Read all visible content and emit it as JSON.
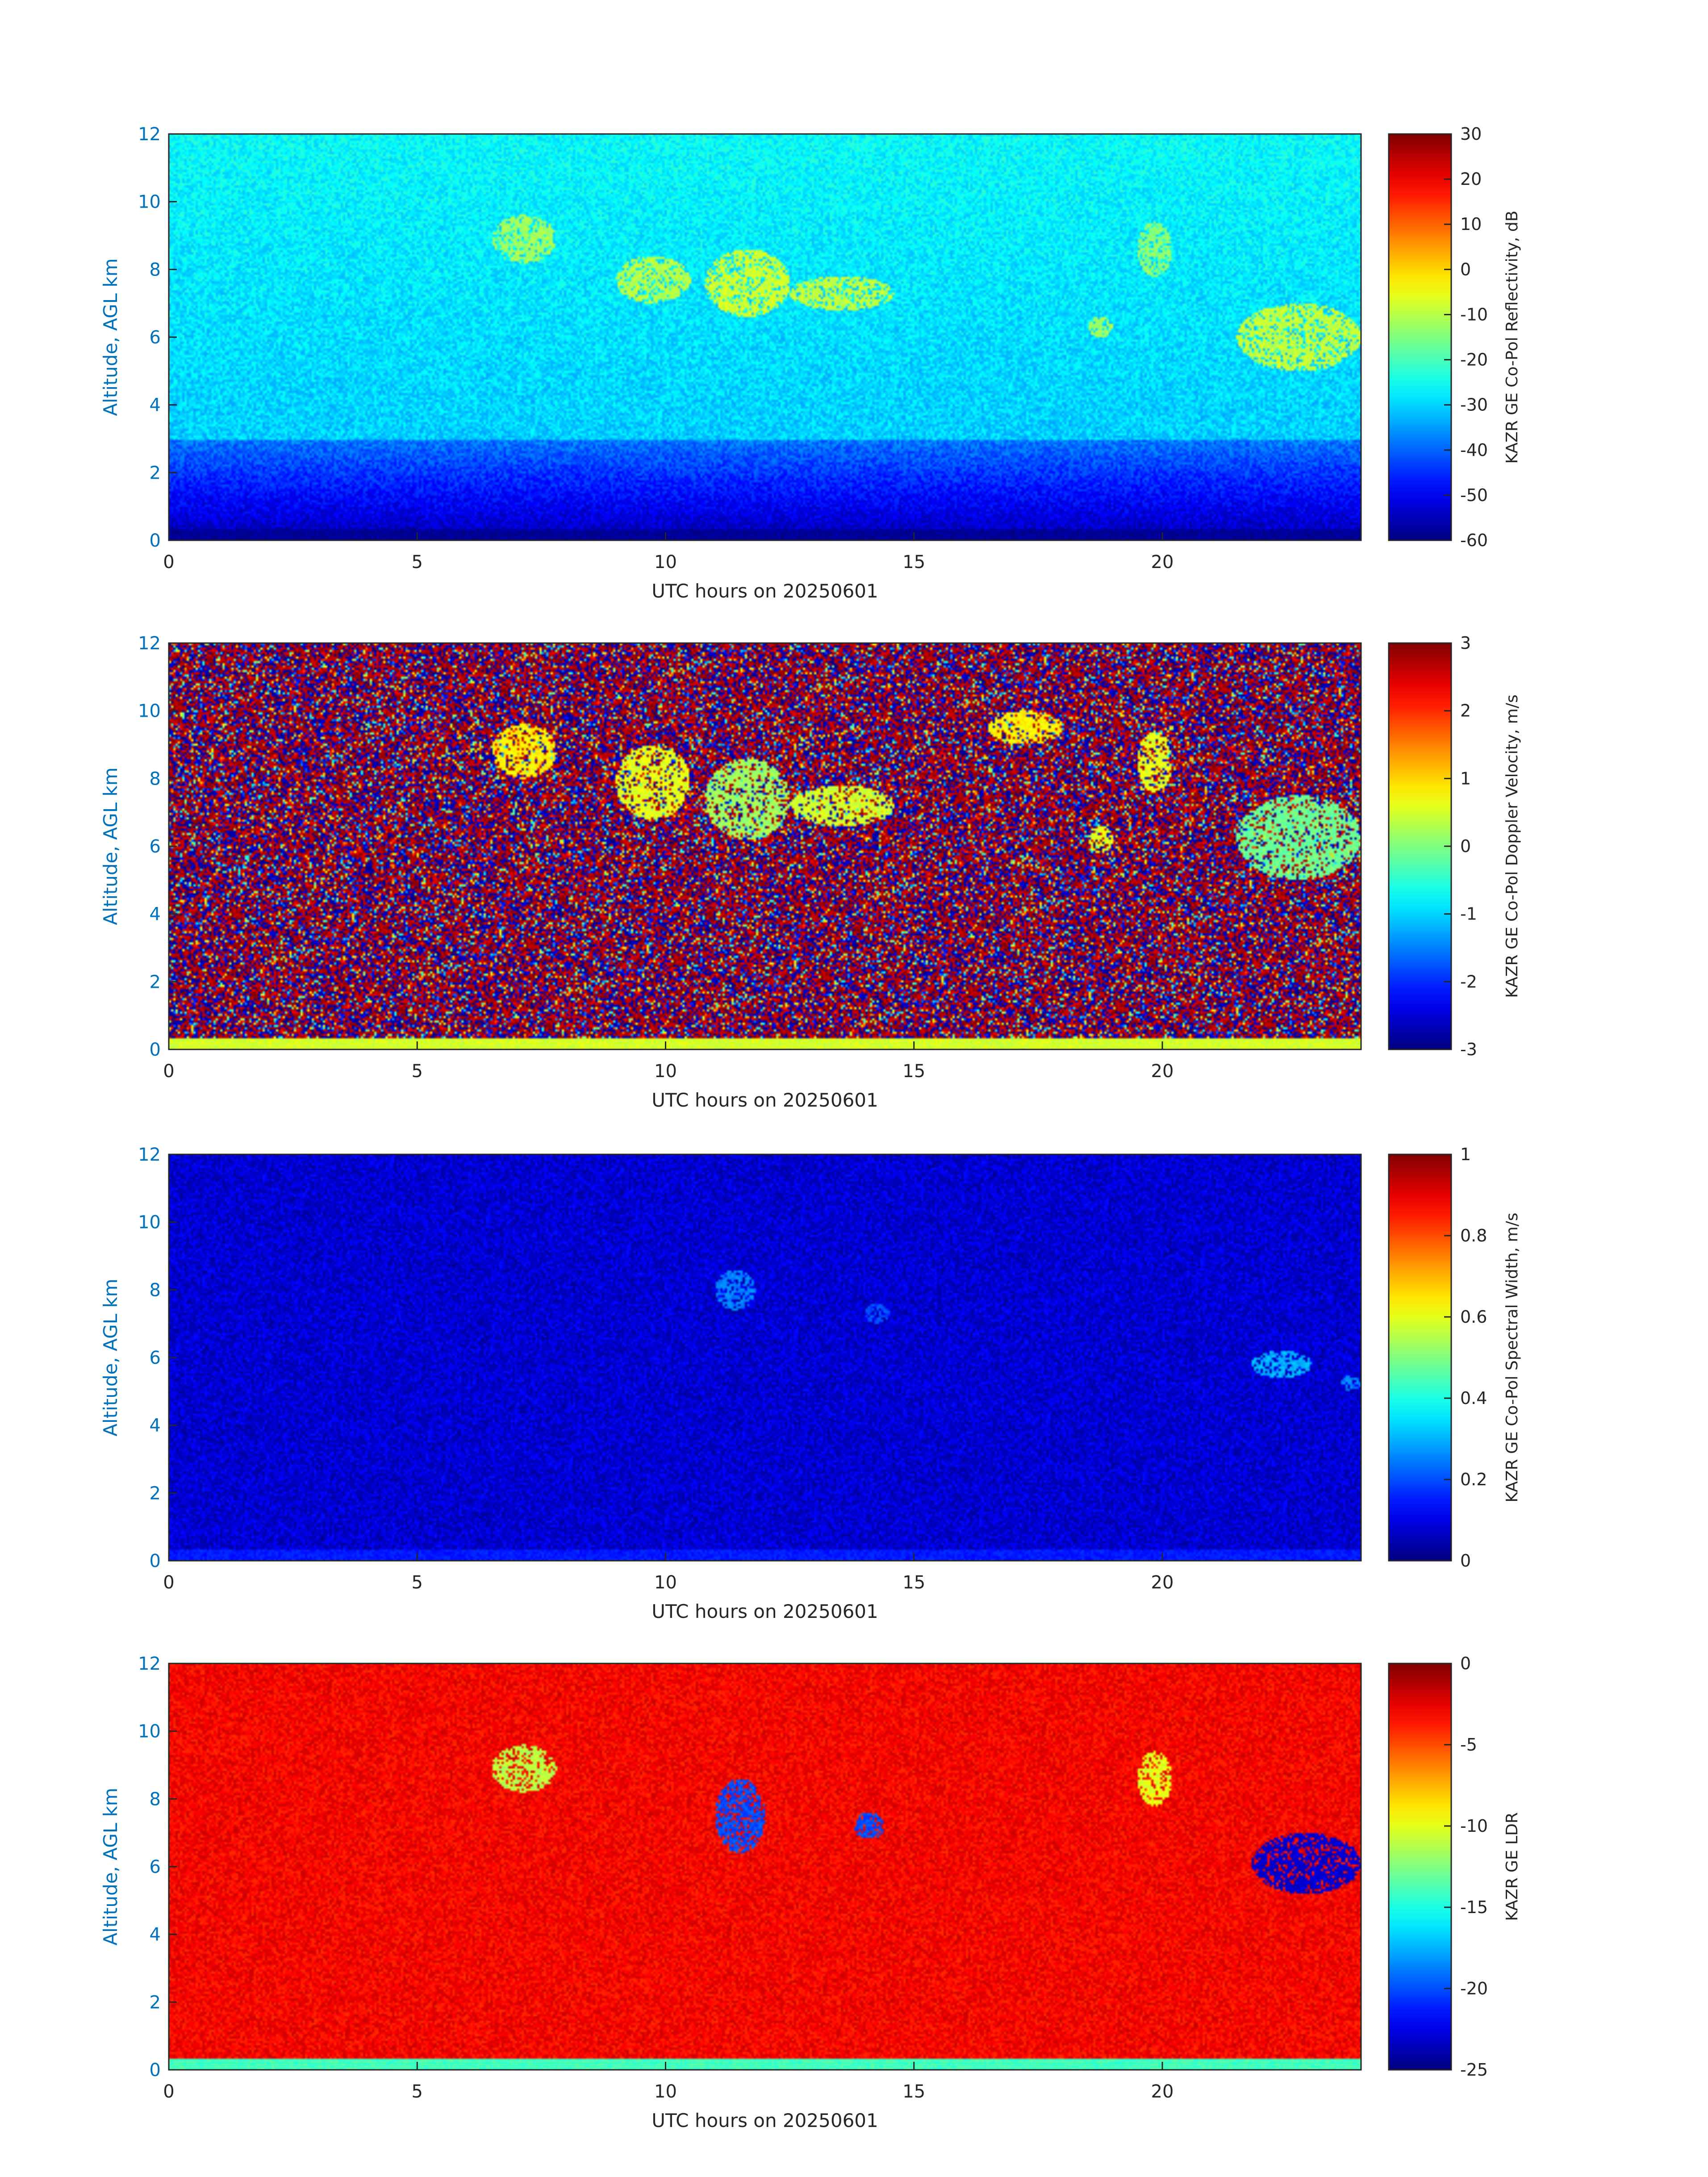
{
  "chart_data": [
    {
      "type": "heatmap",
      "title": "",
      "xlabel": "UTC hours on 20250601",
      "ylabel": "Altitude, AGL km",
      "xlim": [
        0,
        24
      ],
      "ylim": [
        0,
        12
      ],
      "xticks": [
        0,
        5,
        10,
        15,
        20
      ],
      "yticks": [
        0,
        2,
        4,
        6,
        8,
        10,
        12
      ],
      "colormap": "jet",
      "colorbar": {
        "label": "KAZR GE Co-Pol Reflectivity, dB",
        "range": [
          -60,
          30
        ],
        "ticks": [
          30,
          20,
          10,
          0,
          -10,
          -20,
          -30,
          -40,
          -50,
          -60
        ]
      },
      "background_value": -28,
      "surface_value": -58,
      "features": [
        {
          "t0": 6.5,
          "t1": 7.8,
          "z0": 8.2,
          "z1": 9.6,
          "value": -12
        },
        {
          "t0": 9.0,
          "t1": 10.5,
          "z0": 7.0,
          "z1": 8.4,
          "value": -10
        },
        {
          "t0": 10.8,
          "t1": 12.5,
          "z0": 6.6,
          "z1": 8.6,
          "value": -8
        },
        {
          "t0": 12.5,
          "t1": 14.6,
          "z0": 6.8,
          "z1": 7.8,
          "value": -9
        },
        {
          "t0": 18.5,
          "t1": 19.0,
          "z0": 6.0,
          "z1": 6.6,
          "value": -12
        },
        {
          "t0": 19.5,
          "t1": 20.2,
          "z0": 7.8,
          "z1": 9.4,
          "value": -14
        },
        {
          "t0": 21.5,
          "t1": 24.0,
          "z0": 5.0,
          "z1": 7.0,
          "value": -9
        }
      ]
    },
    {
      "type": "heatmap",
      "title": "",
      "xlabel": "UTC hours on 20250601",
      "ylabel": "Altitude, AGL km",
      "xlim": [
        0,
        24
      ],
      "ylim": [
        0,
        12
      ],
      "xticks": [
        0,
        5,
        10,
        15,
        20
      ],
      "yticks": [
        0,
        2,
        4,
        6,
        8,
        10,
        12
      ],
      "colormap": "jet",
      "colorbar": {
        "label": "KAZR GE Co-Pol Doppler Velocity, m/s",
        "range": [
          -3,
          3
        ],
        "ticks": [
          3,
          2,
          1,
          0,
          -1,
          -2,
          -3
        ]
      },
      "background_value": "noise",
      "surface_value": 0.5,
      "features": [
        {
          "t0": 6.5,
          "t1": 7.8,
          "z0": 8.0,
          "z1": 9.6,
          "value": 0.8
        },
        {
          "t0": 9.0,
          "t1": 10.5,
          "z0": 6.8,
          "z1": 9.0,
          "value": 0.6
        },
        {
          "t0": 10.8,
          "t1": 12.5,
          "z0": 6.2,
          "z1": 8.6,
          "value": 0.2
        },
        {
          "t0": 12.5,
          "t1": 14.6,
          "z0": 6.6,
          "z1": 7.8,
          "value": 0.5
        },
        {
          "t0": 16.5,
          "t1": 18.0,
          "z0": 9.0,
          "z1": 10.0,
          "value": 0.8
        },
        {
          "t0": 18.5,
          "t1": 19.0,
          "z0": 5.8,
          "z1": 6.6,
          "value": 0.6
        },
        {
          "t0": 19.5,
          "t1": 20.2,
          "z0": 7.6,
          "z1": 9.4,
          "value": 0.6
        },
        {
          "t0": 21.5,
          "t1": 24.0,
          "z0": 5.0,
          "z1": 7.5,
          "value": -0.1
        }
      ]
    },
    {
      "type": "heatmap",
      "title": "",
      "xlabel": "UTC hours on 20250601",
      "ylabel": "Altitude, AGL km",
      "xlim": [
        0,
        24
      ],
      "ylim": [
        0,
        12
      ],
      "xticks": [
        0,
        5,
        10,
        15,
        20
      ],
      "yticks": [
        0,
        2,
        4,
        6,
        8,
        10,
        12
      ],
      "colormap": "jet",
      "colorbar": {
        "label": "KAZR GE Co-Pol Spectral Width, m/s",
        "range": [
          0,
          1
        ],
        "ticks": [
          1,
          0.8,
          0.6,
          0.4,
          0.2,
          0
        ]
      },
      "background_value": 0.08,
      "surface_value": 0.15,
      "features": [
        {
          "t0": 11.0,
          "t1": 11.8,
          "z0": 7.4,
          "z1": 8.6,
          "value": 0.25
        },
        {
          "t0": 14.0,
          "t1": 14.5,
          "z0": 7.0,
          "z1": 7.6,
          "value": 0.2
        },
        {
          "t0": 21.8,
          "t1": 23.0,
          "z0": 5.4,
          "z1": 6.2,
          "value": 0.3
        },
        {
          "t0": 23.6,
          "t1": 24.0,
          "z0": 5.0,
          "z1": 5.5,
          "value": 0.25
        }
      ]
    },
    {
      "type": "heatmap",
      "title": "",
      "xlabel": "UTC hours on 20250601",
      "ylabel": "Altitude, AGL km",
      "xlim": [
        0,
        24
      ],
      "ylim": [
        0,
        12
      ],
      "xticks": [
        0,
        5,
        10,
        15,
        20
      ],
      "yticks": [
        0,
        2,
        4,
        6,
        8,
        10,
        12
      ],
      "colormap": "jet",
      "colorbar": {
        "label": "KAZR GE LDR",
        "range": [
          -25,
          0
        ],
        "ticks": [
          0,
          -5,
          -10,
          -15,
          -20,
          -25
        ]
      },
      "background_value": -3,
      "surface_value": -14,
      "features": [
        {
          "t0": 6.5,
          "t1": 7.8,
          "z0": 8.2,
          "z1": 9.6,
          "value": -11
        },
        {
          "t0": 11.0,
          "t1": 12.0,
          "z0": 6.4,
          "z1": 8.6,
          "value": -20
        },
        {
          "t0": 13.8,
          "t1": 14.4,
          "z0": 6.8,
          "z1": 7.6,
          "value": -20
        },
        {
          "t0": 19.5,
          "t1": 20.2,
          "z0": 7.8,
          "z1": 9.4,
          "value": -10
        },
        {
          "t0": 21.8,
          "t1": 24.0,
          "z0": 5.2,
          "z1": 7.0,
          "value": -23
        }
      ]
    }
  ]
}
